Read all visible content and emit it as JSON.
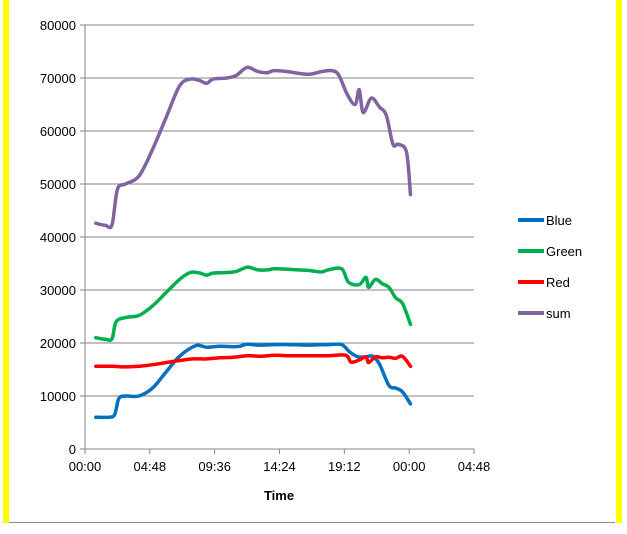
{
  "chart_data": {
    "type": "line",
    "title": "",
    "xlabel": "Time",
    "ylabel": "",
    "x_unit": "hours",
    "xlim": [
      0,
      28.8
    ],
    "ylim": [
      0,
      80000
    ],
    "xticks": [
      {
        "value": 0,
        "label": "00:00"
      },
      {
        "value": 4.8,
        "label": "04:48"
      },
      {
        "value": 9.6,
        "label": "09:36"
      },
      {
        "value": 14.4,
        "label": "14:24"
      },
      {
        "value": 19.2,
        "label": "19:12"
      },
      {
        "value": 24.0,
        "label": "00:00"
      },
      {
        "value": 28.8,
        "label": "04:48"
      }
    ],
    "yticks": [
      0,
      10000,
      20000,
      30000,
      40000,
      50000,
      60000,
      70000,
      80000
    ],
    "ytick_labels": [
      "0",
      "10000",
      "20000",
      "30000",
      "40000",
      "50000",
      "60000",
      "70000",
      "80000"
    ],
    "grid": "horizontal",
    "legend_position": "right",
    "series": [
      {
        "name": "Blue",
        "color": "#0070c0",
        "points": [
          [
            0.8,
            6000
          ],
          [
            1.8,
            6000
          ],
          [
            2.2,
            6500
          ],
          [
            2.5,
            9500
          ],
          [
            3.0,
            10000
          ],
          [
            4.0,
            10000
          ],
          [
            5.0,
            11500
          ],
          [
            6.0,
            14500
          ],
          [
            7.0,
            17500
          ],
          [
            8.2,
            19500
          ],
          [
            9.0,
            19200
          ],
          [
            10.0,
            19400
          ],
          [
            11.0,
            19300
          ],
          [
            11.5,
            19400
          ],
          [
            12.0,
            19800
          ],
          [
            12.8,
            19600
          ],
          [
            14.0,
            19700
          ],
          [
            15.0,
            19700
          ],
          [
            16.5,
            19600
          ],
          [
            18.0,
            19700
          ],
          [
            19.0,
            19700
          ],
          [
            19.6,
            18300
          ],
          [
            20.2,
            17400
          ],
          [
            20.8,
            17400
          ],
          [
            21.3,
            17500
          ],
          [
            21.8,
            16000
          ],
          [
            22.5,
            12000
          ],
          [
            23.0,
            11500
          ],
          [
            23.5,
            10800
          ],
          [
            24.1,
            8500
          ]
        ]
      },
      {
        "name": "Green",
        "color": "#00b050",
        "points": [
          [
            0.8,
            21000
          ],
          [
            1.5,
            20700
          ],
          [
            2.0,
            20800
          ],
          [
            2.3,
            24000
          ],
          [
            3.0,
            24800
          ],
          [
            4.0,
            25200
          ],
          [
            5.0,
            27000
          ],
          [
            6.0,
            29500
          ],
          [
            7.0,
            32000
          ],
          [
            7.8,
            33300
          ],
          [
            8.5,
            33200
          ],
          [
            9.0,
            32800
          ],
          [
            9.5,
            33200
          ],
          [
            10.5,
            33300
          ],
          [
            11.2,
            33500
          ],
          [
            12.0,
            34300
          ],
          [
            12.8,
            33800
          ],
          [
            13.5,
            33800
          ],
          [
            14.0,
            34000
          ],
          [
            15.0,
            33900
          ],
          [
            16.5,
            33700
          ],
          [
            17.5,
            33400
          ],
          [
            18.0,
            33800
          ],
          [
            19.0,
            34000
          ],
          [
            19.5,
            31500
          ],
          [
            20.3,
            31000
          ],
          [
            20.8,
            32400
          ],
          [
            21.0,
            30500
          ],
          [
            21.5,
            32000
          ],
          [
            22.0,
            31200
          ],
          [
            22.5,
            30500
          ],
          [
            23.0,
            28500
          ],
          [
            23.5,
            27500
          ],
          [
            24.1,
            23500
          ]
        ]
      },
      {
        "name": "Red",
        "color": "#ff0000",
        "points": [
          [
            0.8,
            15600
          ],
          [
            2.0,
            15600
          ],
          [
            3.0,
            15500
          ],
          [
            4.0,
            15600
          ],
          [
            5.0,
            15900
          ],
          [
            6.0,
            16300
          ],
          [
            7.0,
            16700
          ],
          [
            8.0,
            17000
          ],
          [
            9.0,
            17000
          ],
          [
            10.0,
            17200
          ],
          [
            11.0,
            17300
          ],
          [
            12.0,
            17600
          ],
          [
            13.0,
            17500
          ],
          [
            14.0,
            17700
          ],
          [
            15.0,
            17600
          ],
          [
            16.5,
            17600
          ],
          [
            18.0,
            17600
          ],
          [
            19.3,
            17700
          ],
          [
            19.7,
            16400
          ],
          [
            20.3,
            16800
          ],
          [
            20.8,
            17400
          ],
          [
            21.0,
            16300
          ],
          [
            21.5,
            17400
          ],
          [
            22.0,
            17200
          ],
          [
            22.5,
            17300
          ],
          [
            23.0,
            17100
          ],
          [
            23.5,
            17500
          ],
          [
            24.1,
            15600
          ]
        ]
      },
      {
        "name": "sum",
        "color": "#8064a2",
        "points": [
          [
            0.8,
            42600
          ],
          [
            1.5,
            42200
          ],
          [
            2.0,
            42300
          ],
          [
            2.4,
            49000
          ],
          [
            3.0,
            50000
          ],
          [
            4.0,
            51500
          ],
          [
            5.0,
            56500
          ],
          [
            6.0,
            62500
          ],
          [
            7.0,
            68500
          ],
          [
            7.8,
            69800
          ],
          [
            8.5,
            69500
          ],
          [
            9.0,
            69000
          ],
          [
            9.5,
            69800
          ],
          [
            10.5,
            70000
          ],
          [
            11.2,
            70500
          ],
          [
            12.0,
            72000
          ],
          [
            12.8,
            71200
          ],
          [
            13.5,
            71000
          ],
          [
            14.0,
            71400
          ],
          [
            15.0,
            71200
          ],
          [
            16.5,
            70700
          ],
          [
            17.5,
            71200
          ],
          [
            18.3,
            71400
          ],
          [
            18.8,
            70500
          ],
          [
            19.4,
            67000
          ],
          [
            20.0,
            65000
          ],
          [
            20.3,
            67800
          ],
          [
            20.6,
            63500
          ],
          [
            21.2,
            66200
          ],
          [
            21.8,
            64500
          ],
          [
            22.3,
            63000
          ],
          [
            22.8,
            57500
          ],
          [
            23.2,
            57500
          ],
          [
            23.8,
            56000
          ],
          [
            24.1,
            48000
          ]
        ]
      }
    ]
  }
}
